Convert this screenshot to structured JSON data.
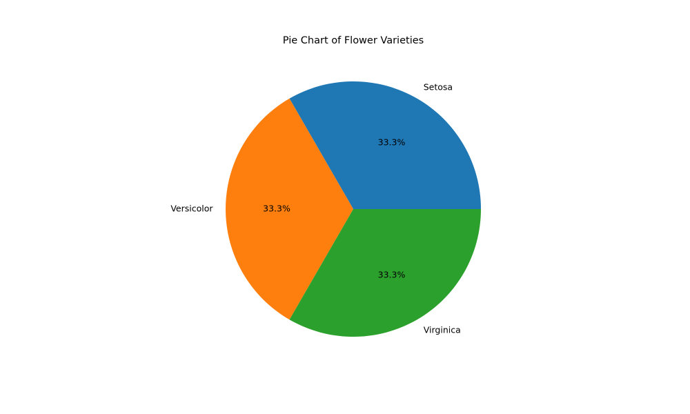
{
  "chart_data": {
    "type": "pie",
    "title": "Pie Chart of Flower Varieties",
    "slices": [
      {
        "label": "Setosa",
        "value": 1,
        "percent_label": "33.3%",
        "color": "#1f77b4"
      },
      {
        "label": "Versicolor",
        "value": 1,
        "percent_label": "33.3%",
        "color": "#ff7f0e"
      },
      {
        "label": "Virginica",
        "value": 1,
        "percent_label": "33.3%",
        "color": "#2ca02c"
      }
    ],
    "start_angle_deg": 0,
    "direction": "counterclockwise",
    "legend": "none"
  }
}
